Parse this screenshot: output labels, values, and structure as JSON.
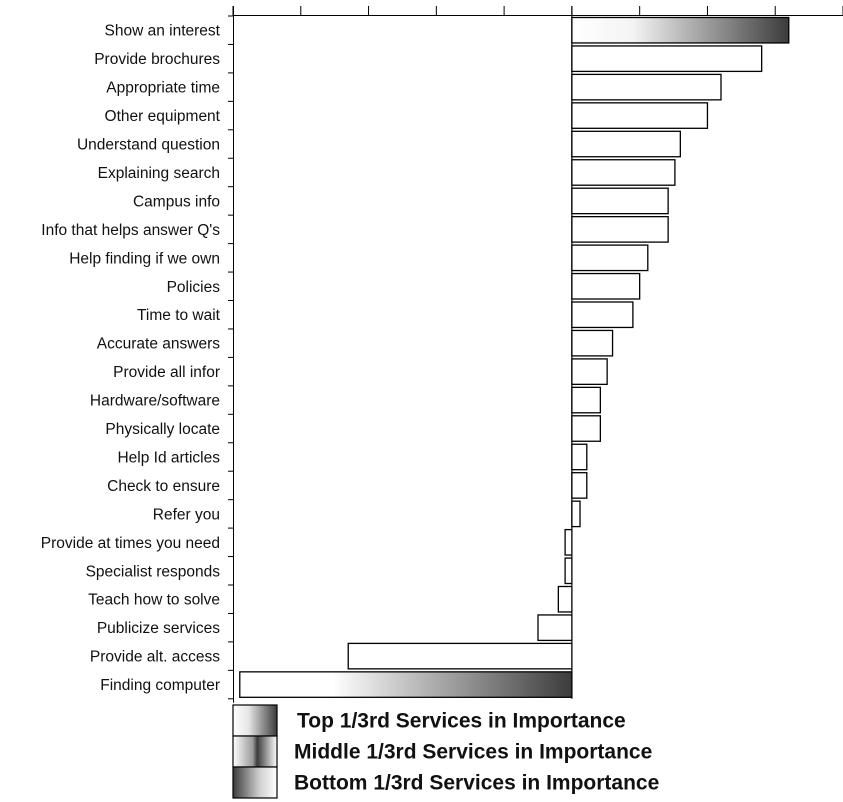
{
  "chart_data": {
    "type": "bar",
    "orientation": "horizontal",
    "categories": [
      "Show an interest",
      "Provide brochures",
      "Appropriate time",
      "Other equipment",
      "Understand question",
      "Explaining search",
      "Campus info",
      "Info that helps answer Q's",
      "Help finding if we own",
      "Policies",
      "Time to wait",
      "Accurate answers",
      "Provide all infor",
      "Hardware/software",
      "Physically locate",
      "Help Id articles",
      "Check to ensure",
      "Refer you",
      "Provide at times you need",
      "Specialist responds",
      "Teach how to solve",
      "Publicize services",
      "Provide alt. access",
      "Finding computer"
    ],
    "values": [
      3.2,
      2.8,
      2.2,
      2.0,
      1.6,
      1.52,
      1.42,
      1.42,
      1.12,
      1.0,
      0.9,
      0.6,
      0.52,
      0.42,
      0.42,
      0.22,
      0.22,
      0.12,
      -0.1,
      -0.1,
      -0.2,
      -0.5,
      -3.3,
      -4.9
    ],
    "xlim": [
      -5,
      4
    ],
    "tick_values": [
      -5,
      -4,
      -3,
      -2,
      -1,
      0,
      1,
      2,
      3,
      4
    ],
    "tick_labels_shown": false,
    "gradient_fill_indices": [
      0,
      23
    ],
    "grid": false,
    "legend_position": "bottom",
    "legend": [
      {
        "label": "Top 1/3rd Services in Importance",
        "swatch": "top"
      },
      {
        "label": "Middle 1/3rd Services in Importance",
        "swatch": "middle"
      },
      {
        "label": "Bottom 1/3rd Services in Importance",
        "swatch": "bottom"
      }
    ],
    "colors": {
      "outline": "#000000",
      "fill": "#ffffff",
      "gradient_light": "#ffffff",
      "gradient_dark": "#3c3c3c"
    }
  }
}
